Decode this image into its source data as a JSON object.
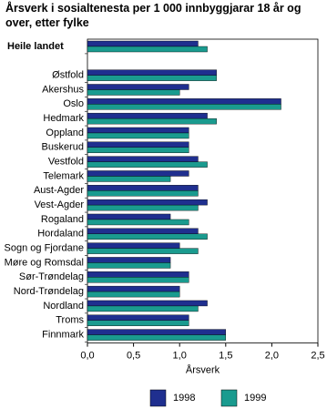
{
  "chart_data": {
    "type": "hbar",
    "title": "Årsverk i sosialtenesta per 1 000 innbyggjarar 18 år og over, etter fylke",
    "categories": [
      "Heile landet",
      null,
      "Østfold",
      "Akershus",
      "Oslo",
      "Hedmark",
      "Oppland",
      "Buskerud",
      "Vestfold",
      "Telemark",
      "Aust-Agder",
      "Vest-Agder",
      "Rogaland",
      "Hordaland",
      "Sogn og Fjordane",
      "Møre og Romsdal",
      "Sør-Trøndelag",
      "Nord-Trøndelag",
      "Nordland",
      "Troms",
      "Finnmark"
    ],
    "series": [
      {
        "name": "1998",
        "color": "#1f2f8f",
        "values": [
          1.2,
          null,
          1.4,
          1.1,
          2.1,
          1.3,
          1.1,
          1.1,
          1.2,
          1.1,
          1.2,
          1.3,
          0.9,
          1.2,
          1.0,
          0.9,
          1.1,
          1.0,
          1.3,
          1.1,
          1.5
        ]
      },
      {
        "name": "1999",
        "color": "#1a9b8f",
        "values": [
          1.3,
          null,
          1.4,
          1.0,
          2.1,
          1.4,
          1.1,
          1.1,
          1.3,
          0.9,
          1.2,
          1.2,
          1.1,
          1.3,
          1.2,
          0.9,
          1.1,
          1.0,
          1.2,
          1.1,
          1.5
        ]
      }
    ],
    "xlabel": "Årsverk",
    "xlim": [
      0,
      2.5
    ],
    "xticks": [
      {
        "value": 0,
        "label": "0,0"
      },
      {
        "value": 0.5,
        "label": "0,5"
      },
      {
        "value": 1,
        "label": "1,0"
      },
      {
        "value": 1.5,
        "label": "1,5"
      },
      {
        "value": 2,
        "label": "2,0"
      },
      {
        "value": 2.5,
        "label": "2,5"
      }
    ],
    "grid": false,
    "legend": "bottom"
  }
}
